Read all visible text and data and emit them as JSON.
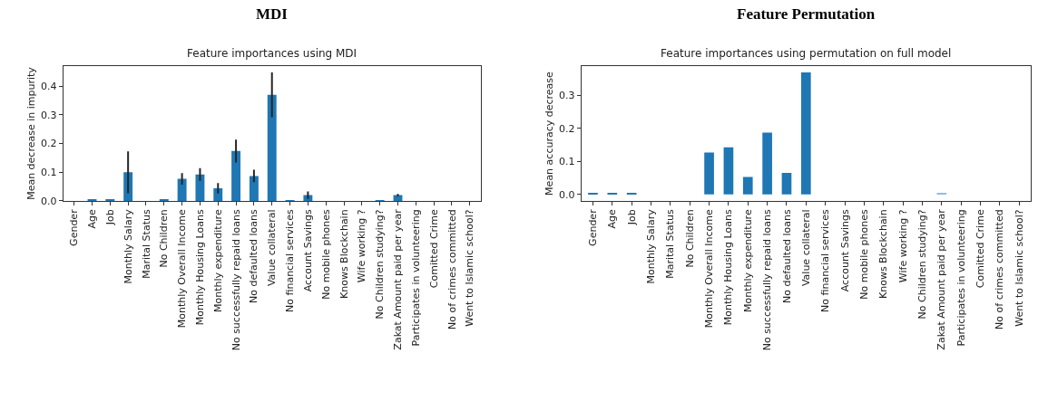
{
  "chart_data": [
    {
      "type": "bar",
      "title": "MDI",
      "subtitle": "Feature importances using MDI",
      "ylabel": "Mean decrease in impurity",
      "categories": [
        "Gender",
        "Age",
        "Job",
        "Monthly Salary",
        "Marital Status",
        "No Children",
        "Monthly Overall Income",
        "Monthly Housing Loans",
        "Monthly expenditure",
        "No successfully repaid loans",
        "No defaulted loans",
        "Value collateral",
        "No financial services",
        "Account Savings",
        "No mobile phones",
        "Knows Blockchain",
        "Wife working ?",
        "No Children studying?",
        "Zakat Amount paid per year",
        "Participates in volunteering",
        "Comitted Crime",
        "No of crimes committed",
        "Went to Islamic school?"
      ],
      "values": [
        0,
        0.005,
        0.005,
        0.1,
        0,
        0.004,
        0.077,
        0.092,
        0.044,
        0.174,
        0.087,
        0.37,
        0.001,
        0.02,
        0,
        0,
        0,
        0.002,
        0.02,
        0,
        0,
        0,
        0
      ],
      "errors": [
        null,
        null,
        null,
        0.073,
        null,
        null,
        0.02,
        0.022,
        0.018,
        0.04,
        0.022,
        0.078,
        null,
        0.013,
        null,
        null,
        null,
        null,
        0.004,
        null,
        null,
        null,
        null
      ],
      "color": "#1f77b4",
      "ylim": [
        0,
        0.47
      ],
      "yticks": [
        {
          "value": 0,
          "label": "0.0"
        },
        {
          "value": 0.1,
          "label": "0.1"
        },
        {
          "value": 0.2,
          "label": "0.2"
        },
        {
          "value": 0.3,
          "label": "0.3"
        },
        {
          "value": 0.4,
          "label": "0.4"
        }
      ]
    },
    {
      "type": "bar",
      "title": "Feature Permutation",
      "subtitle": "Feature importances using permutation on full model",
      "ylabel": "Mean accuracy decrease",
      "categories": [
        "Gender",
        "Age",
        "Job",
        "Monthly Salary",
        "Marital Status",
        "No Children",
        "Monthly Overall Income",
        "Monthly Housing Loans",
        "Monthly expenditure",
        "No successfully repaid loans",
        "No defaulted loans",
        "Value collateral",
        "No financial services",
        "Account Savings",
        "No mobile phones",
        "Knows Blockchain",
        "Wife working ?",
        "No Children studying?",
        "Zakat Amount paid per year",
        "Participates in volunteering",
        "Comitted Crime",
        "No of crimes committed",
        "Went to Islamic school?"
      ],
      "values": [
        0.002,
        0.002,
        0.002,
        0.0,
        0,
        0,
        0.127,
        0.143,
        0.053,
        0.187,
        0.065,
        0.37,
        0,
        0,
        0,
        0,
        0,
        0,
        0.004,
        0,
        0,
        0,
        0
      ],
      "colors": [
        "#1f77b4",
        "#1f77b4",
        "#1f77b4",
        "#1f77b4",
        "#1f77b4",
        "#1f77b4",
        "#1f77b4",
        "#1f77b4",
        "#1f77b4",
        "#1f77b4",
        "#1f77b4",
        "#1f77b4",
        "#1f77b4",
        "#1f77b4",
        "#1f77b4",
        "#1f77b4",
        "#1f77b4",
        "#1f77b4",
        "#8fbfe0",
        "#1f77b4",
        "#1f77b4",
        "#1f77b4",
        "#1f77b4"
      ],
      "ylim": [
        -0.02,
        0.389
      ],
      "yticks": [
        {
          "value": 0,
          "label": "0.0"
        },
        {
          "value": 0.1,
          "label": "0.1"
        },
        {
          "value": 0.2,
          "label": "0.2"
        },
        {
          "value": 0.3,
          "label": "0.3"
        }
      ]
    }
  ]
}
